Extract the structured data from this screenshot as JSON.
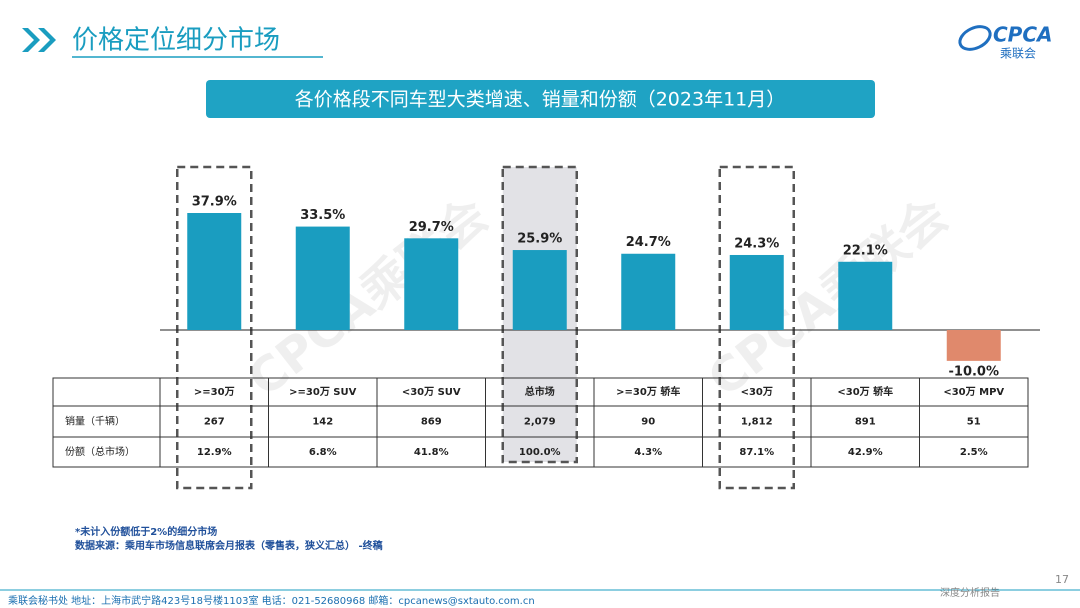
{
  "header": {
    "title": "价格定位细分市场",
    "logo": "CPCA",
    "logo_subtitle": "乘联会"
  },
  "chart_data": {
    "type": "bar",
    "title": "各价格段不同车型大类增速、销量和份额（2023年11月）",
    "categories": [
      ">=30万",
      ">=30万 SUV",
      "<30万 SUV",
      "总市场",
      ">=30万 轿车",
      "<30万",
      "<30万 轿车",
      "<30万 MPV"
    ],
    "values": [
      37.9,
      33.5,
      29.7,
      25.9,
      24.7,
      24.3,
      22.1,
      -10.0
    ],
    "value_labels": [
      "37.9%",
      "33.5%",
      "29.7%",
      "25.9%",
      "24.7%",
      "24.3%",
      "22.1%",
      "-10.0%"
    ],
    "color": "#1a9dc0",
    "negative_color": "#e0896c"
  },
  "table": {
    "rows": [
      {
        "label": "销量（千辆）",
        "values": [
          "267",
          "142",
          "869",
          "2,079",
          "90",
          "1,812",
          "891",
          "51"
        ]
      },
      {
        "label": "份额（总市场）",
        "values": [
          "12.9%",
          "6.8%",
          "41.8%",
          "100.0%",
          "4.3%",
          "87.1%",
          "42.9%",
          "2.5%"
        ]
      }
    ]
  },
  "notes": [
    "*未计入份额低于2%的细分市场",
    "数据来源：乘用车市场信息联席会月报表（零售表，狭义汇总） -终稿"
  ],
  "watermark": "CPCA乘联会",
  "footer": {
    "text": "乘联会秘书处   地址：上海市武宁路423号18号楼1103室  电话：021-52680968   邮箱：cpcanews@sxtauto.com.cn",
    "report_label": "深度分析报告",
    "page": "17"
  }
}
